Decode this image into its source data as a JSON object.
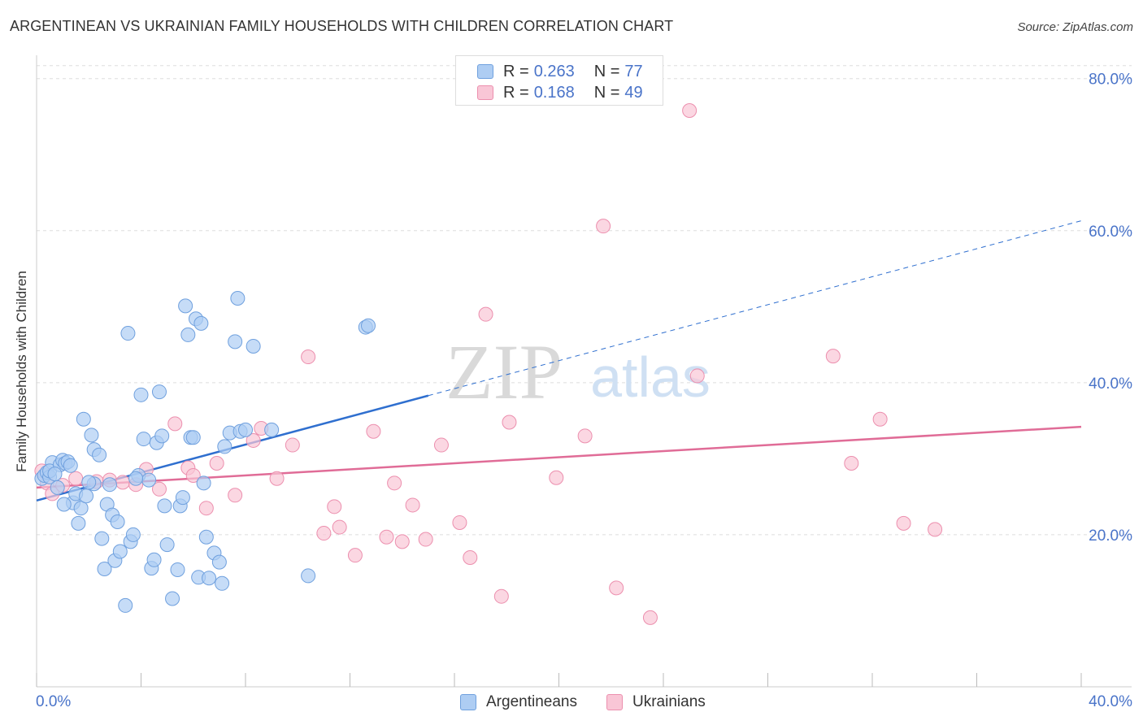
{
  "header": {
    "title": "ARGENTINEAN VS UKRAINIAN FAMILY HOUSEHOLDS WITH CHILDREN CORRELATION CHART",
    "source": "Source: ZipAtlas.com"
  },
  "watermark": {
    "zip": "ZIP",
    "atlas": "atlas"
  },
  "legend": {
    "rows": [
      {
        "r_label": "R =",
        "r_value": "0.263",
        "n_label": "N =",
        "n_value": "77",
        "color": "#6fa8e8"
      },
      {
        "r_label": "R =",
        "r_value": "0.168",
        "n_label": "N =",
        "n_value": "49",
        "color": "#f28db0"
      }
    ]
  },
  "bottom_legend": [
    {
      "label": "Argentineans",
      "color": "#6fa8e8"
    },
    {
      "label": "Ukrainians",
      "color": "#f28db0"
    }
  ],
  "colors": {
    "blue_fill": "#aecdf3",
    "blue_stroke": "#6fa0de",
    "blue_line": "#2f6fcf",
    "pink_fill": "#f9c6d6",
    "pink_stroke": "#ec8fae",
    "pink_line": "#e06c97",
    "axis_text": "#4a74c9",
    "grid": "#dddddd"
  },
  "chart_data": {
    "type": "scatter",
    "title": "ARGENTINEAN VS UKRAINIAN FAMILY HOUSEHOLDS WITH CHILDREN CORRELATION CHART",
    "xlabel": "",
    "ylabel": "Family Households with Children",
    "xlim": [
      0,
      40
    ],
    "ylim": [
      0,
      82
    ],
    "x_tick_labels": [
      "0.0%",
      "40.0%"
    ],
    "y_ticks": [
      20,
      40,
      60,
      80
    ],
    "y_tick_labels": [
      "20.0%",
      "40.0%",
      "60.0%",
      "80.0%"
    ],
    "grid": true,
    "legend_position": "top-center",
    "series": [
      {
        "name": "Argentineans",
        "r": 0.263,
        "n": 77,
        "trend": {
          "x": [
            0,
            15
          ],
          "y": [
            24.5,
            38.3
          ],
          "extended_x": [
            15,
            40
          ],
          "extended_y": [
            38.3,
            61.3
          ]
        },
        "points": [
          [
            0.2,
            27.4
          ],
          [
            0.3,
            27.8
          ],
          [
            0.4,
            28.2
          ],
          [
            0.5,
            27.6
          ],
          [
            0.6,
            29.5
          ],
          [
            0.5,
            28.4
          ],
          [
            0.8,
            26.2
          ],
          [
            0.9,
            29.2
          ],
          [
            1.0,
            29.8
          ],
          [
            1.1,
            29.4
          ],
          [
            1.2,
            29.6
          ],
          [
            1.3,
            29.1
          ],
          [
            1.4,
            24.2
          ],
          [
            1.5,
            25.4
          ],
          [
            1.6,
            21.5
          ],
          [
            1.7,
            23.5
          ],
          [
            1.8,
            35.2
          ],
          [
            1.9,
            25.1
          ],
          [
            2.1,
            33.1
          ],
          [
            2.2,
            31.2
          ],
          [
            2.4,
            30.5
          ],
          [
            2.5,
            19.5
          ],
          [
            2.6,
            15.5
          ],
          [
            2.7,
            24.0
          ],
          [
            2.8,
            26.6
          ],
          [
            2.9,
            22.6
          ],
          [
            3.0,
            16.6
          ],
          [
            3.1,
            21.7
          ],
          [
            3.2,
            17.8
          ],
          [
            3.4,
            10.7
          ],
          [
            3.5,
            46.5
          ],
          [
            3.6,
            19.1
          ],
          [
            3.7,
            20.0
          ],
          [
            3.9,
            27.8
          ],
          [
            4.0,
            38.4
          ],
          [
            4.1,
            32.6
          ],
          [
            4.3,
            27.2
          ],
          [
            4.4,
            15.6
          ],
          [
            4.5,
            16.7
          ],
          [
            4.6,
            32.1
          ],
          [
            4.7,
            38.8
          ],
          [
            4.8,
            33.0
          ],
          [
            4.9,
            23.8
          ],
          [
            5.0,
            18.7
          ],
          [
            5.2,
            11.6
          ],
          [
            5.4,
            15.4
          ],
          [
            5.5,
            23.8
          ],
          [
            5.6,
            24.9
          ],
          [
            5.7,
            50.1
          ],
          [
            5.8,
            46.3
          ],
          [
            5.9,
            32.8
          ],
          [
            6.1,
            48.4
          ],
          [
            6.2,
            14.4
          ],
          [
            6.3,
            47.8
          ],
          [
            6.4,
            26.8
          ],
          [
            6.5,
            19.7
          ],
          [
            6.6,
            14.3
          ],
          [
            6.8,
            17.6
          ],
          [
            7.0,
            16.4
          ],
          [
            7.1,
            13.6
          ],
          [
            7.2,
            31.6
          ],
          [
            7.4,
            33.4
          ],
          [
            7.6,
            45.4
          ],
          [
            7.7,
            51.1
          ],
          [
            7.8,
            33.6
          ],
          [
            8.0,
            33.8
          ],
          [
            8.3,
            44.8
          ],
          [
            9.0,
            33.8
          ],
          [
            10.4,
            14.6
          ],
          [
            12.6,
            47.3
          ],
          [
            12.7,
            47.5
          ],
          [
            0.7,
            28.0
          ],
          [
            1.05,
            24.0
          ],
          [
            2.2,
            26.7
          ],
          [
            3.8,
            27.4
          ],
          [
            6.0,
            32.8
          ],
          [
            2.0,
            26.9
          ]
        ]
      },
      {
        "name": "Ukrainians",
        "r": 0.168,
        "n": 49,
        "trend": {
          "x": [
            0,
            40
          ],
          "y": [
            26.2,
            34.2
          ]
        },
        "points": [
          [
            0.2,
            28.4
          ],
          [
            0.4,
            26.8
          ],
          [
            0.6,
            25.4
          ],
          [
            1.0,
            26.5
          ],
          [
            1.5,
            27.4
          ],
          [
            2.3,
            27.0
          ],
          [
            2.8,
            27.2
          ],
          [
            3.3,
            26.9
          ],
          [
            3.8,
            26.6
          ],
          [
            4.2,
            28.6
          ],
          [
            4.7,
            26.0
          ],
          [
            5.3,
            34.6
          ],
          [
            5.8,
            28.8
          ],
          [
            6.0,
            27.8
          ],
          [
            6.5,
            23.5
          ],
          [
            6.9,
            29.4
          ],
          [
            7.6,
            25.2
          ],
          [
            8.3,
            32.4
          ],
          [
            8.6,
            34.0
          ],
          [
            9.2,
            27.4
          ],
          [
            9.8,
            31.8
          ],
          [
            10.4,
            43.4
          ],
          [
            11.0,
            20.2
          ],
          [
            11.4,
            23.7
          ],
          [
            11.6,
            21.0
          ],
          [
            12.2,
            17.3
          ],
          [
            12.9,
            33.6
          ],
          [
            13.4,
            19.7
          ],
          [
            13.7,
            26.8
          ],
          [
            14.0,
            19.1
          ],
          [
            14.4,
            23.9
          ],
          [
            14.9,
            19.4
          ],
          [
            15.5,
            31.8
          ],
          [
            16.2,
            21.6
          ],
          [
            16.6,
            17.0
          ],
          [
            17.2,
            49.0
          ],
          [
            17.8,
            11.9
          ],
          [
            18.1,
            34.8
          ],
          [
            19.9,
            27.5
          ],
          [
            21.0,
            33.0
          ],
          [
            21.7,
            60.6
          ],
          [
            22.2,
            13.0
          ],
          [
            23.5,
            9.1
          ],
          [
            25.0,
            75.8
          ],
          [
            25.3,
            40.9
          ],
          [
            30.5,
            43.5
          ],
          [
            31.2,
            29.4
          ],
          [
            32.3,
            35.2
          ],
          [
            33.2,
            21.5
          ]
        ]
      }
    ],
    "extra_pink_point": [
      34.4,
      20.7
    ]
  }
}
